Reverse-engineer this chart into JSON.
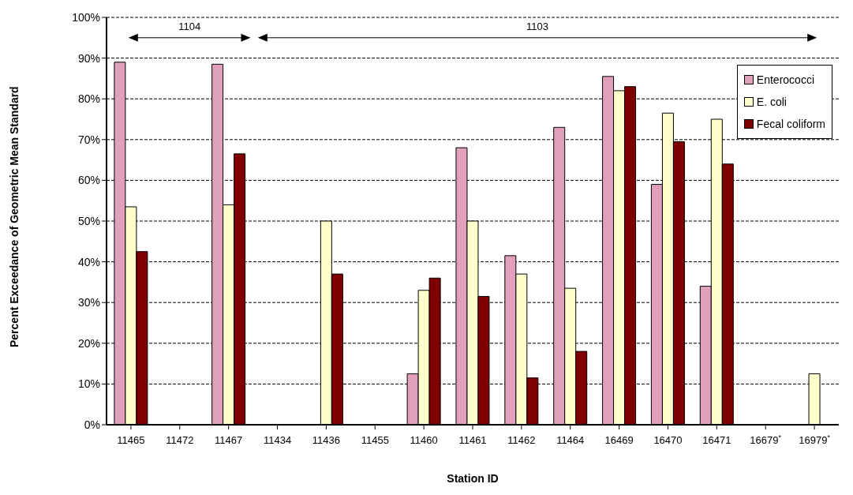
{
  "chart_data": {
    "type": "bar",
    "xlabel": "Station ID",
    "ylabel": "Percent Exceedance of Geometric Mean Standard",
    "categories": [
      "11465",
      "11472",
      "11467",
      "11434",
      "11436",
      "11455",
      "11460",
      "11461",
      "11462",
      "11464",
      "16469",
      "16470",
      "16471",
      "16679$^{*}$",
      "16979$^{*}$"
    ],
    "series": [
      {
        "name": "Enterococci",
        "color": "#e0a0bc",
        "values": [
          89,
          null,
          88.5,
          null,
          null,
          null,
          12.5,
          68,
          41.5,
          73,
          85.5,
          59,
          34,
          null,
          null
        ]
      },
      {
        "name": "E. coli",
        "color": "#ffffcc",
        "values": [
          53.5,
          null,
          54,
          null,
          50,
          null,
          33,
          50,
          37,
          33.5,
          82,
          76.5,
          75,
          null,
          12.5
        ]
      },
      {
        "name": "Fecal coliform",
        "color": "#800000",
        "values": [
          42.5,
          null,
          66.5,
          null,
          37,
          null,
          36,
          31.5,
          11.5,
          18,
          83,
          69.5,
          64,
          null,
          null
        ]
      }
    ],
    "ylim": [
      0,
      100
    ],
    "yticks": [
      {
        "value": 0,
        "label": "0%"
      },
      {
        "value": 10,
        "label": "10%"
      },
      {
        "value": 20,
        "label": "20%"
      },
      {
        "value": 30,
        "label": "30%"
      },
      {
        "value": 40,
        "label": "40%"
      },
      {
        "value": 50,
        "label": "50%"
      },
      {
        "value": 60,
        "label": "60%"
      },
      {
        "value": 70,
        "label": "70%"
      },
      {
        "value": 80,
        "label": "80%"
      },
      {
        "value": 90,
        "label": "90%"
      },
      {
        "value": 100,
        "label": "100%"
      }
    ],
    "grid": "y",
    "legend": "top right",
    "annotations": [
      "1104",
      "1103"
    ]
  }
}
